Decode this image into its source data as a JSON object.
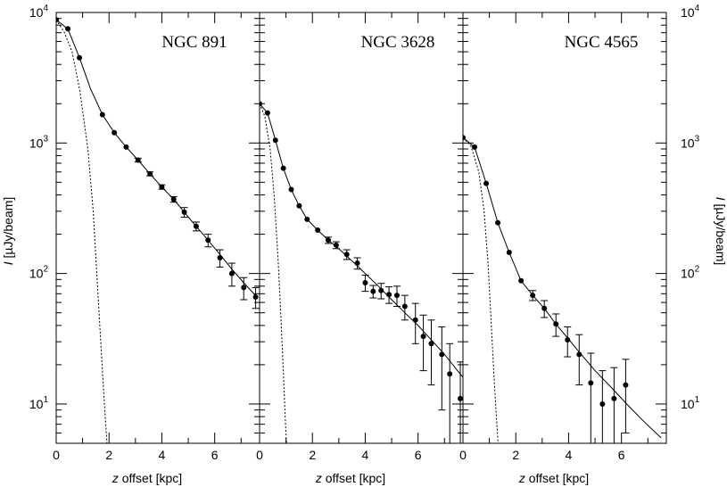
{
  "chart_data": {
    "type": "scatter",
    "y_axis": {
      "label_italic": "I",
      "label_rest": " [µJy/beam]",
      "scale": "log",
      "ylim": [
        5,
        10000
      ],
      "major_ticks": [
        {
          "value": 10,
          "base": "10",
          "exp": "1"
        },
        {
          "value": 100,
          "base": "10",
          "exp": "2"
        },
        {
          "value": 1000,
          "base": "10",
          "exp": "3"
        },
        {
          "value": 10000,
          "base": "10",
          "exp": "4"
        }
      ]
    },
    "x_axis_label_italic": "z",
    "x_axis_label_rest": " offset [kpc]",
    "panels": [
      {
        "title": "NGC 891",
        "xlim": [
          0,
          7.7
        ],
        "x_ticks": [
          "0",
          "2",
          "4",
          "6"
        ],
        "x_tick_values": [
          0,
          2,
          4,
          6
        ],
        "points": [
          {
            "x": 0.0,
            "y": 8800,
            "err": 0
          },
          {
            "x": 0.44,
            "y": 7500,
            "err": 0
          },
          {
            "x": 0.88,
            "y": 4500,
            "err": 0
          },
          {
            "x": 1.75,
            "y": 1650,
            "err": 0
          },
          {
            "x": 2.2,
            "y": 1200,
            "err": 0
          },
          {
            "x": 2.65,
            "y": 930,
            "err": 0
          },
          {
            "x": 3.1,
            "y": 740,
            "err": 25
          },
          {
            "x": 3.55,
            "y": 580,
            "err": 20
          },
          {
            "x": 4.0,
            "y": 460,
            "err": 18
          },
          {
            "x": 4.45,
            "y": 370,
            "err": 18
          },
          {
            "x": 4.85,
            "y": 295,
            "err": 25
          },
          {
            "x": 5.3,
            "y": 230,
            "err": 18
          },
          {
            "x": 5.75,
            "y": 180,
            "err": 20
          },
          {
            "x": 6.2,
            "y": 132,
            "err": 20
          },
          {
            "x": 6.65,
            "y": 100,
            "err": 20
          },
          {
            "x": 7.1,
            "y": 78,
            "err": 15
          },
          {
            "x": 7.55,
            "y": 66,
            "err": 12
          }
        ],
        "model": {
          "x": [
            0,
            0.44,
            0.88,
            1.3,
            1.75,
            2.2,
            2.65,
            3.1,
            3.55,
            4.0,
            4.45,
            4.85,
            5.3,
            5.75,
            6.2,
            6.65,
            7.1,
            7.6
          ],
          "y": [
            8800,
            7500,
            4500,
            2600,
            1650,
            1200,
            930,
            740,
            580,
            460,
            370,
            295,
            230,
            180,
            140,
            108,
            85,
            66
          ]
        },
        "beam": {
          "x": [
            0,
            0.3,
            0.6,
            0.9,
            1.2,
            1.4,
            1.6,
            1.8,
            1.92
          ],
          "y": [
            8800,
            7100,
            5000,
            2500,
            900,
            300,
            60,
            12,
            5
          ]
        }
      },
      {
        "title": "NGC 3628",
        "xlim": [
          0,
          7.7
        ],
        "x_ticks": [
          "0",
          "2",
          "4",
          "6"
        ],
        "x_tick_values": [
          0,
          2,
          4,
          6
        ],
        "points": [
          {
            "x": 0.0,
            "y": 2000,
            "err": 0
          },
          {
            "x": 0.3,
            "y": 1700,
            "err": 0
          },
          {
            "x": 0.6,
            "y": 1050,
            "err": 0
          },
          {
            "x": 0.9,
            "y": 640,
            "err": 0
          },
          {
            "x": 1.2,
            "y": 440,
            "err": 0
          },
          {
            "x": 1.5,
            "y": 330,
            "err": 0
          },
          {
            "x": 1.8,
            "y": 260,
            "err": 0
          },
          {
            "x": 2.2,
            "y": 215,
            "err": 0
          },
          {
            "x": 2.6,
            "y": 180,
            "err": 10
          },
          {
            "x": 2.9,
            "y": 165,
            "err": 10
          },
          {
            "x": 3.3,
            "y": 140,
            "err": 12
          },
          {
            "x": 3.7,
            "y": 120,
            "err": 12
          },
          {
            "x": 4.0,
            "y": 85,
            "err": 12
          },
          {
            "x": 4.3,
            "y": 73,
            "err": 8
          },
          {
            "x": 4.6,
            "y": 74,
            "err": 10
          },
          {
            "x": 4.9,
            "y": 69,
            "err": 10
          },
          {
            "x": 5.2,
            "y": 68,
            "err": 12
          },
          {
            "x": 5.5,
            "y": 56,
            "err": 12
          },
          {
            "x": 5.9,
            "y": 44,
            "err": 15
          },
          {
            "x": 6.2,
            "y": 33,
            "err": 15
          },
          {
            "x": 6.5,
            "y": 29,
            "err": 15
          },
          {
            "x": 6.9,
            "y": 24,
            "err": 15
          },
          {
            "x": 7.2,
            "y": 17,
            "err": 12
          },
          {
            "x": 7.6,
            "y": 11,
            "err": 10
          }
        ],
        "model": {
          "x": [
            0,
            0.3,
            0.6,
            0.9,
            1.2,
            1.5,
            1.8,
            2.2,
            2.6,
            3.0,
            3.5,
            4.0,
            4.5,
            5.0,
            5.5,
            6.0,
            6.5,
            7.0,
            7.7
          ],
          "y": [
            2000,
            1700,
            1050,
            640,
            440,
            330,
            260,
            215,
            180,
            155,
            125,
            100,
            80,
            63,
            50,
            40,
            31,
            24,
            16
          ]
        },
        "beam": {
          "x": [
            0,
            0.2,
            0.4,
            0.55,
            0.7,
            0.8,
            0.9,
            0.97,
            1.02
          ],
          "y": [
            2000,
            1600,
            900,
            400,
            130,
            50,
            18,
            8,
            5
          ]
        }
      },
      {
        "title": "NGC 4565",
        "xlim": [
          0,
          7.7
        ],
        "x_ticks": [
          "0",
          "2",
          "4",
          "6"
        ],
        "x_tick_values": [
          0,
          2,
          4,
          6
        ],
        "points": [
          {
            "x": 0.0,
            "y": 1100,
            "err": 0
          },
          {
            "x": 0.44,
            "y": 930,
            "err": 0
          },
          {
            "x": 0.88,
            "y": 490,
            "err": 0
          },
          {
            "x": 1.32,
            "y": 245,
            "err": 0
          },
          {
            "x": 1.75,
            "y": 145,
            "err": 0
          },
          {
            "x": 2.2,
            "y": 88,
            "err": 0
          },
          {
            "x": 2.64,
            "y": 68,
            "err": 6
          },
          {
            "x": 3.08,
            "y": 54,
            "err": 8
          },
          {
            "x": 3.52,
            "y": 41,
            "err": 8
          },
          {
            "x": 3.96,
            "y": 31,
            "err": 8
          },
          {
            "x": 4.4,
            "y": 24,
            "err": 10
          },
          {
            "x": 4.84,
            "y": 14.5,
            "err": 10
          },
          {
            "x": 5.28,
            "y": 10,
            "err": 8
          },
          {
            "x": 5.72,
            "y": 11,
            "err": 8
          },
          {
            "x": 6.16,
            "y": 14,
            "err": 8
          }
        ],
        "model": {
          "x": [
            0,
            0.44,
            0.88,
            1.32,
            1.75,
            2.2,
            2.64,
            3.08,
            3.52,
            3.96,
            4.4,
            5.0,
            5.6,
            6.2,
            6.8,
            7.5
          ],
          "y": [
            1100,
            930,
            490,
            245,
            145,
            88,
            68,
            54,
            41,
            32,
            25,
            18,
            13.5,
            10,
            7.5,
            5.5
          ]
        },
        "beam": {
          "x": [
            0,
            0.3,
            0.6,
            0.8,
            0.95,
            1.05,
            1.15,
            1.25,
            1.33
          ],
          "y": [
            1100,
            950,
            600,
            300,
            120,
            50,
            20,
            9,
            5
          ]
        }
      }
    ]
  }
}
